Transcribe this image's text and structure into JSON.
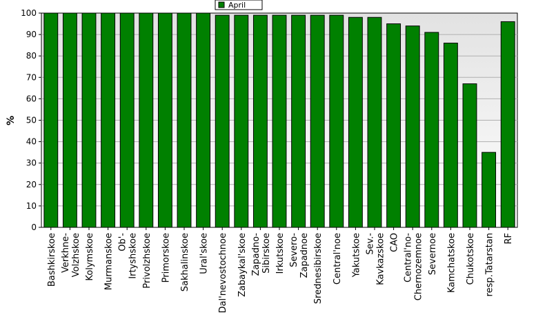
{
  "chart_data": {
    "type": "bar",
    "ylabel": "%",
    "ylim": [
      0,
      100
    ],
    "yticks": [
      0,
      10,
      20,
      30,
      40,
      50,
      60,
      70,
      80,
      90,
      100
    ],
    "grid": true,
    "legend_position": "top-center",
    "categories": [
      [
        "Bashkirskoe"
      ],
      [
        "Verkhne-",
        "Volzhskoe"
      ],
      [
        "Kolymskoe"
      ],
      [
        "Murmanskoe"
      ],
      [
        "Ob'-",
        "Irtyshskoe"
      ],
      [
        "Privolzhskoe"
      ],
      [
        "Primorskoe"
      ],
      [
        "Sakhalinskoe"
      ],
      [
        "Ural'skoe"
      ],
      [
        "Dal'nevostochnoe"
      ],
      [
        "Zabaykal'skoe"
      ],
      [
        "Zapadno-",
        "Sibirskoe"
      ],
      [
        "Irkutskoe"
      ],
      [
        "Severo-",
        "Zapadnoe"
      ],
      [
        "Srednesibirskoe"
      ],
      [
        "Central'noe"
      ],
      [
        "Yakutskoe"
      ],
      [
        "Sev.-",
        "Kavkazskoe"
      ],
      [
        "CAO"
      ],
      [
        "Central'no-",
        "Chernozemnoe"
      ],
      [
        "Severnoe"
      ],
      [
        "Kamchatskoe"
      ],
      [
        "Chukotskoe"
      ],
      [
        "resp.Tatarstan"
      ],
      [
        "RF"
      ]
    ],
    "series": [
      {
        "name": "April",
        "color": "#008000",
        "values": [
          100,
          100,
          100,
          100,
          100,
          100,
          100,
          100,
          100,
          99,
          99,
          99,
          99,
          99,
          99,
          99,
          98,
          98,
          95,
          94,
          91,
          86,
          67,
          35,
          96
        ]
      }
    ]
  }
}
